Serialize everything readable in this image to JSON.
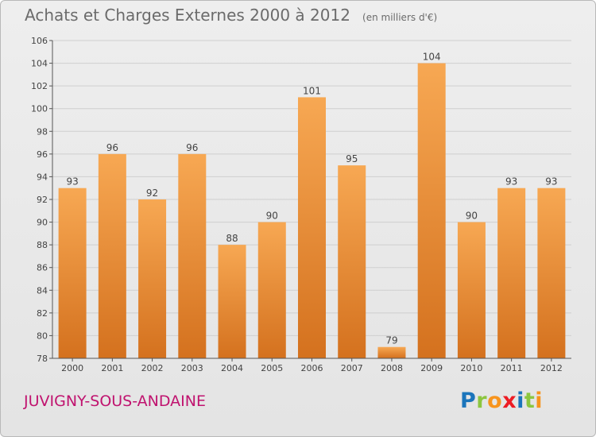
{
  "title": "Achats et Charges Externes 2000 à 2012",
  "subtitle": "(en milliers d'€)",
  "location": "JUVIGNY-SOUS-ANDAINE",
  "brand": "Proxiti",
  "colors": {
    "bar_light": "#f7a853",
    "bar_dark": "#d4711e",
    "grid": "#cfcfcf",
    "axis": "#555555",
    "title": "#6b6b6b",
    "location": "#c0136f"
  },
  "chart_data": {
    "type": "bar",
    "title": "Achats et Charges Externes 2000 à 2012",
    "subtitle": "(en milliers d'€)",
    "categories": [
      "2000",
      "2001",
      "2002",
      "2003",
      "2004",
      "2005",
      "2006",
      "2007",
      "2008",
      "2009",
      "2010",
      "2011",
      "2012"
    ],
    "values": [
      93,
      96,
      92,
      96,
      88,
      90,
      101,
      95,
      79,
      104,
      90,
      93,
      93
    ],
    "xlabel": "",
    "ylabel": "",
    "ylim": [
      78,
      106
    ],
    "yticks": [
      78,
      80,
      82,
      84,
      86,
      88,
      90,
      92,
      94,
      96,
      98,
      100,
      102,
      104,
      106
    ],
    "grid": true,
    "legend": "none"
  }
}
